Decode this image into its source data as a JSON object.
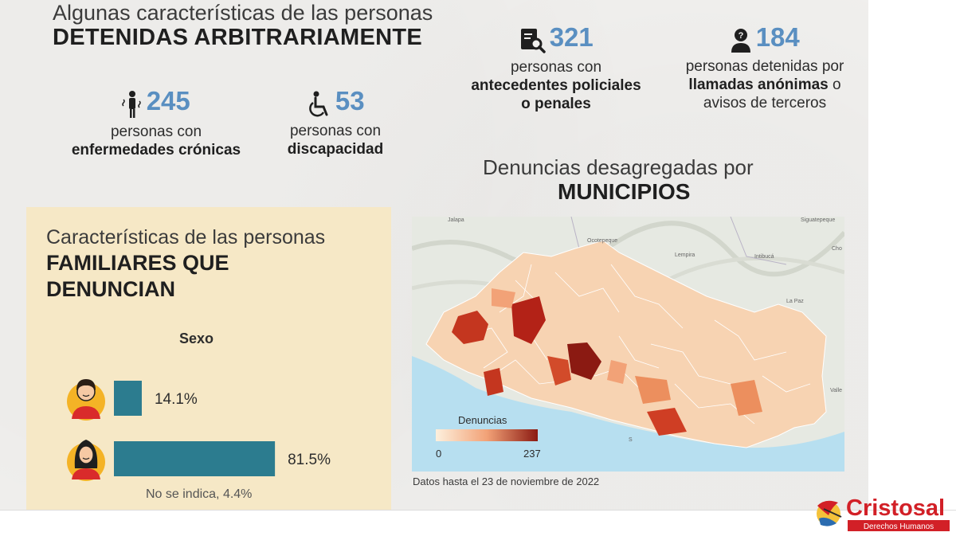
{
  "header": {
    "title_light": "Algunas características de las personas",
    "title_bold": "DETENIDAS ARBITRARIAMENTE"
  },
  "stats": [
    {
      "icon": "sick-person-icon",
      "value": "245",
      "line1": "personas con",
      "line2": "enfermedades crónicas"
    },
    {
      "icon": "wheelchair-icon",
      "value": "53",
      "line1": "personas con",
      "line2": "discapacidad"
    },
    {
      "icon": "record-document-icon",
      "value": "321",
      "line1": "personas con",
      "line2": "antecedentes policiales",
      "line3": "o penales"
    },
    {
      "icon": "anonymous-person-icon",
      "value": "184",
      "line1": "personas detenidas por",
      "line2_bold": "llamadas anónimas",
      "line2_rest": " o",
      "line3": "avisos de terceros"
    }
  ],
  "map_section": {
    "title_light": "Denuncias desagregadas por",
    "title_bold": "MUNICIPIOS",
    "legend_title": "Denuncias",
    "legend_min": "0",
    "legend_max": "237",
    "note": "Datos hasta el 23 de noviembre de 2022",
    "place_labels": [
      "Jalapa",
      "Ocotepeque",
      "Lempira",
      "Intibucá",
      "La Paz",
      "Siguatepeque",
      "Valle",
      "Cho",
      "S"
    ]
  },
  "family_panel": {
    "title_light": "Características de las personas",
    "title_bold_1": "FAMILIARES QUE",
    "title_bold_2": "DENUNCIAN",
    "chart_title": "Sexo",
    "unspecified": "No se indica, 4.4%"
  },
  "chart_data": {
    "type": "bar",
    "title": "Sexo",
    "categories": [
      "Hombre",
      "Mujer"
    ],
    "values": [
      14.1,
      81.5
    ],
    "value_labels": [
      "14.1%",
      "81.5%"
    ],
    "unspecified_percent": 4.4,
    "bar_color": "#2c7c8f"
  },
  "brand": {
    "name": "Cristosal",
    "subtitle": "Derechos Humanos",
    "color": "#d22027"
  },
  "colors": {
    "accent_number": "#5a8fc1",
    "panel_bg": "#f6e8c6",
    "map_low": "#fbe5cf",
    "map_high": "#8b1a12"
  }
}
